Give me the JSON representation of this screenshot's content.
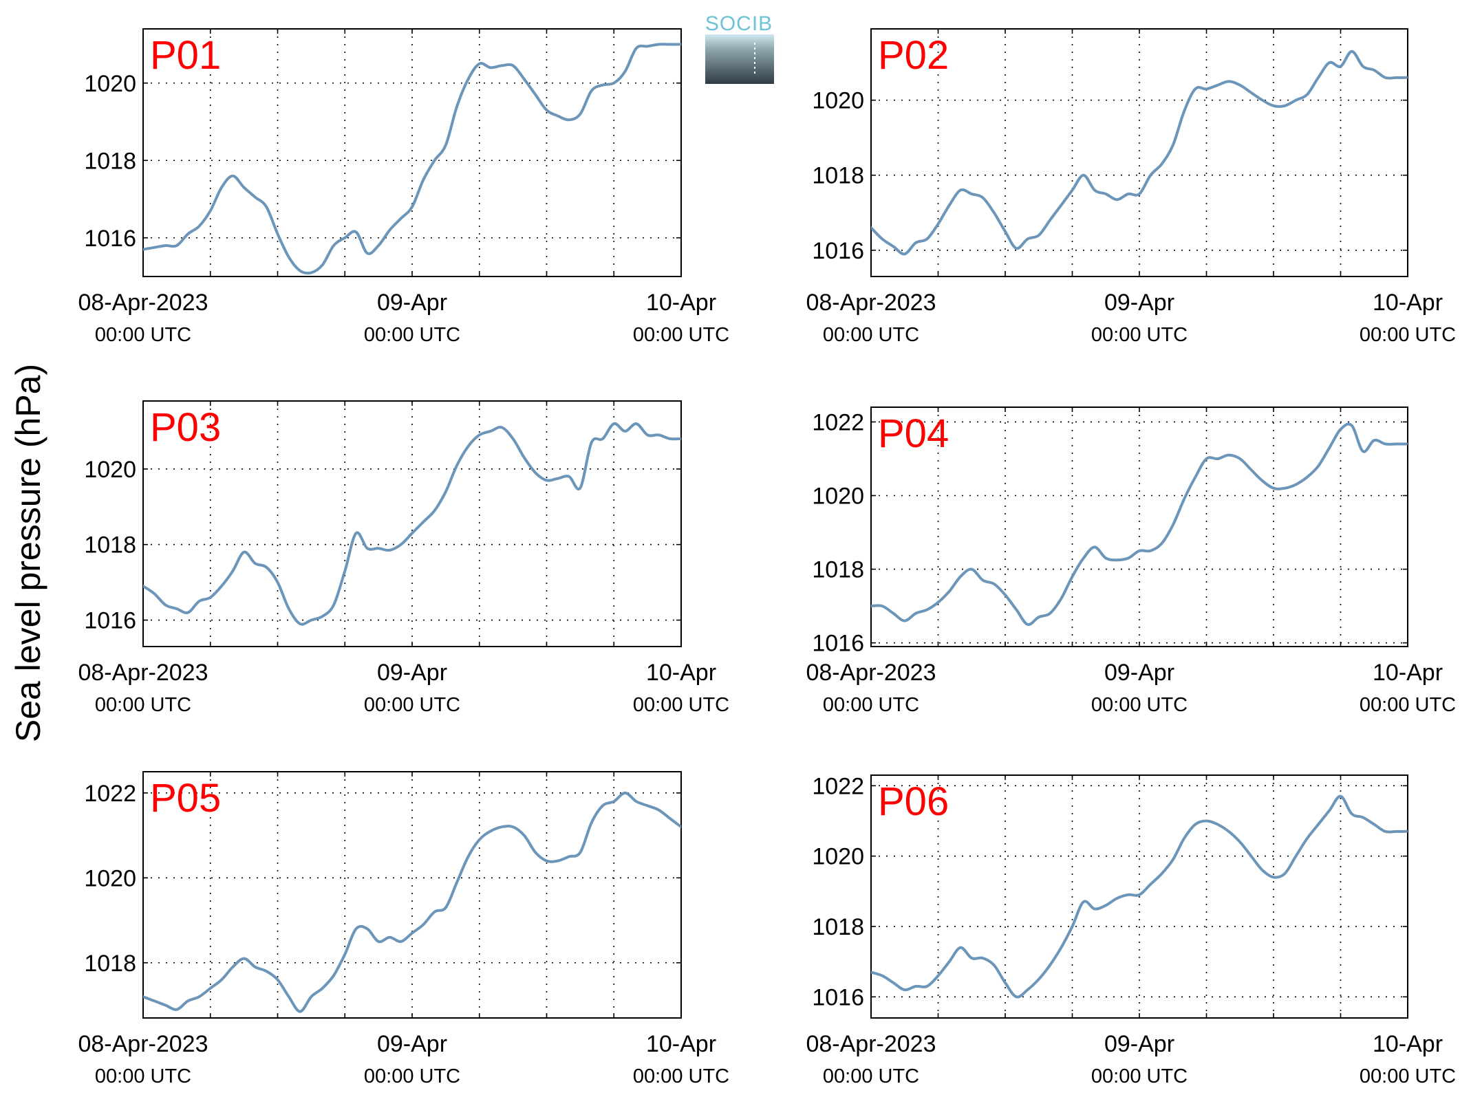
{
  "logo": {
    "text": "SOCIB"
  },
  "ylabel": "Sea level pressure (hPa)",
  "x_ticks": [
    {
      "date": "08-Apr-2023",
      "time": "00:00 UTC"
    },
    {
      "date": "09-Apr",
      "time": "00:00 UTC"
    },
    {
      "date": "10-Apr",
      "time": "00:00 UTC"
    }
  ],
  "colors": {
    "line": "#6b95b9",
    "label": "#ff0000"
  },
  "chart_data": [
    {
      "type": "line",
      "label": "P01",
      "xlim": [
        0,
        48
      ],
      "ylim": [
        1015,
        1021.4
      ],
      "yticks": [
        1016,
        1018,
        1020
      ],
      "x": [
        0,
        1,
        2,
        3,
        4,
        5,
        6,
        7,
        8,
        9,
        10,
        11,
        12,
        13,
        14,
        15,
        16,
        17,
        18,
        19,
        20,
        21,
        22,
        23,
        24,
        25,
        26,
        27,
        28,
        29,
        30,
        31,
        32,
        33,
        34,
        35,
        36,
        37,
        38,
        39,
        40,
        41,
        42,
        43,
        44,
        45,
        46,
        47,
        48
      ],
      "values": [
        1015.7,
        1015.75,
        1015.8,
        1015.8,
        1016.1,
        1016.3,
        1016.7,
        1017.3,
        1017.6,
        1017.3,
        1017.05,
        1016.8,
        1016.1,
        1015.5,
        1015.15,
        1015.1,
        1015.3,
        1015.8,
        1016.0,
        1016.15,
        1015.6,
        1015.8,
        1016.2,
        1016.5,
        1016.8,
        1017.5,
        1018.0,
        1018.4,
        1019.4,
        1020.1,
        1020.5,
        1020.4,
        1020.45,
        1020.45,
        1020.1,
        1019.7,
        1019.3,
        1019.15,
        1019.05,
        1019.2,
        1019.8,
        1019.95,
        1020.0,
        1020.3,
        1020.9,
        1020.95,
        1021.0,
        1021.0,
        1021.0
      ]
    },
    {
      "type": "line",
      "label": "P02",
      "xlim": [
        0,
        48
      ],
      "ylim": [
        1015.3,
        1021.9
      ],
      "yticks": [
        1016,
        1018,
        1020
      ],
      "x": [
        0,
        1,
        2,
        3,
        4,
        5,
        6,
        7,
        8,
        9,
        10,
        11,
        12,
        13,
        14,
        15,
        16,
        17,
        18,
        19,
        20,
        21,
        22,
        23,
        24,
        25,
        26,
        27,
        28,
        29,
        30,
        31,
        32,
        33,
        34,
        35,
        36,
        37,
        38,
        39,
        40,
        41,
        42,
        43,
        44,
        45,
        46,
        47,
        48
      ],
      "values": [
        1016.6,
        1016.3,
        1016.1,
        1015.9,
        1016.2,
        1016.3,
        1016.7,
        1017.2,
        1017.6,
        1017.5,
        1017.4,
        1017.0,
        1016.5,
        1016.05,
        1016.3,
        1016.4,
        1016.8,
        1017.2,
        1017.6,
        1018.0,
        1017.6,
        1017.5,
        1017.35,
        1017.5,
        1017.5,
        1018.0,
        1018.3,
        1018.8,
        1019.7,
        1020.3,
        1020.3,
        1020.4,
        1020.5,
        1020.4,
        1020.2,
        1020.0,
        1019.85,
        1019.85,
        1020.0,
        1020.15,
        1020.6,
        1021.0,
        1020.9,
        1021.3,
        1020.9,
        1020.8,
        1020.6,
        1020.6,
        1020.6
      ]
    },
    {
      "type": "line",
      "label": "P03",
      "xlim": [
        0,
        48
      ],
      "ylim": [
        1015.3,
        1021.8
      ],
      "yticks": [
        1016,
        1018,
        1020
      ],
      "x": [
        0,
        1,
        2,
        3,
        4,
        5,
        6,
        7,
        8,
        9,
        10,
        11,
        12,
        13,
        14,
        15,
        16,
        17,
        18,
        19,
        20,
        21,
        22,
        23,
        24,
        25,
        26,
        27,
        28,
        29,
        30,
        31,
        32,
        33,
        34,
        35,
        36,
        37,
        38,
        39,
        40,
        41,
        42,
        43,
        44,
        45,
        46,
        47,
        48
      ],
      "values": [
        1016.9,
        1016.7,
        1016.4,
        1016.3,
        1016.2,
        1016.5,
        1016.6,
        1016.9,
        1017.3,
        1017.8,
        1017.5,
        1017.4,
        1017.0,
        1016.3,
        1015.9,
        1016.0,
        1016.1,
        1016.4,
        1017.3,
        1018.3,
        1017.9,
        1017.9,
        1017.85,
        1018.0,
        1018.3,
        1018.6,
        1018.9,
        1019.4,
        1020.1,
        1020.6,
        1020.9,
        1021.0,
        1021.1,
        1020.8,
        1020.3,
        1019.9,
        1019.7,
        1019.75,
        1019.8,
        1019.5,
        1020.7,
        1020.8,
        1021.2,
        1021.0,
        1021.2,
        1020.9,
        1020.9,
        1020.8,
        1020.8
      ]
    },
    {
      "type": "line",
      "label": "P04",
      "xlim": [
        0,
        48
      ],
      "ylim": [
        1015.9,
        1022.4
      ],
      "yticks": [
        1016,
        1018,
        1020,
        1022
      ],
      "x": [
        0,
        1,
        2,
        3,
        4,
        5,
        6,
        7,
        8,
        9,
        10,
        11,
        12,
        13,
        14,
        15,
        16,
        17,
        18,
        19,
        20,
        21,
        22,
        23,
        24,
        25,
        26,
        27,
        28,
        29,
        30,
        31,
        32,
        33,
        34,
        35,
        36,
        37,
        38,
        39,
        40,
        41,
        42,
        43,
        44,
        45,
        46,
        47,
        48
      ],
      "values": [
        1017.0,
        1017.0,
        1016.8,
        1016.6,
        1016.8,
        1016.9,
        1017.1,
        1017.4,
        1017.8,
        1018.0,
        1017.7,
        1017.6,
        1017.3,
        1016.9,
        1016.5,
        1016.7,
        1016.8,
        1017.2,
        1017.8,
        1018.3,
        1018.6,
        1018.3,
        1018.25,
        1018.3,
        1018.5,
        1018.5,
        1018.7,
        1019.2,
        1019.9,
        1020.5,
        1021.0,
        1021.0,
        1021.1,
        1021.0,
        1020.7,
        1020.4,
        1020.2,
        1020.2,
        1020.3,
        1020.5,
        1020.8,
        1021.3,
        1021.8,
        1021.9,
        1021.2,
        1021.5,
        1021.4,
        1021.4,
        1021.4
      ]
    },
    {
      "type": "line",
      "label": "P05",
      "xlim": [
        0,
        48
      ],
      "ylim": [
        1016.7,
        1022.5
      ],
      "yticks": [
        1018,
        1020,
        1022
      ],
      "x": [
        0,
        1,
        2,
        3,
        4,
        5,
        6,
        7,
        8,
        9,
        10,
        11,
        12,
        13,
        14,
        15,
        16,
        17,
        18,
        19,
        20,
        21,
        22,
        23,
        24,
        25,
        26,
        27,
        28,
        29,
        30,
        31,
        32,
        33,
        34,
        35,
        36,
        37,
        38,
        39,
        40,
        41,
        42,
        43,
        44,
        45,
        46,
        47,
        48
      ],
      "values": [
        1017.2,
        1017.1,
        1017.0,
        1016.9,
        1017.1,
        1017.2,
        1017.4,
        1017.6,
        1017.9,
        1018.1,
        1017.9,
        1017.8,
        1017.6,
        1017.2,
        1016.85,
        1017.2,
        1017.4,
        1017.7,
        1018.2,
        1018.8,
        1018.8,
        1018.5,
        1018.6,
        1018.5,
        1018.7,
        1018.9,
        1019.2,
        1019.3,
        1019.9,
        1020.5,
        1020.9,
        1021.1,
        1021.2,
        1021.2,
        1021.0,
        1020.6,
        1020.4,
        1020.4,
        1020.5,
        1020.6,
        1021.3,
        1021.7,
        1021.8,
        1022.0,
        1021.8,
        1021.7,
        1021.6,
        1021.4,
        1021.2
      ]
    },
    {
      "type": "line",
      "label": "P06",
      "xlim": [
        0,
        48
      ],
      "ylim": [
        1015.4,
        1022.3
      ],
      "yticks": [
        1016,
        1018,
        1020,
        1022
      ],
      "x": [
        0,
        1,
        2,
        3,
        4,
        5,
        6,
        7,
        8,
        9,
        10,
        11,
        12,
        13,
        14,
        15,
        16,
        17,
        18,
        19,
        20,
        21,
        22,
        23,
        24,
        25,
        26,
        27,
        28,
        29,
        30,
        31,
        32,
        33,
        34,
        35,
        36,
        37,
        38,
        39,
        40,
        41,
        42,
        43,
        44,
        45,
        46,
        47,
        48
      ],
      "values": [
        1016.7,
        1016.6,
        1016.4,
        1016.2,
        1016.3,
        1016.3,
        1016.6,
        1017.0,
        1017.4,
        1017.1,
        1017.1,
        1016.9,
        1016.4,
        1016.0,
        1016.2,
        1016.5,
        1016.9,
        1017.4,
        1018.0,
        1018.7,
        1018.5,
        1018.6,
        1018.8,
        1018.9,
        1018.9,
        1019.2,
        1019.5,
        1019.9,
        1020.5,
        1020.9,
        1021.0,
        1020.9,
        1020.7,
        1020.4,
        1020.0,
        1019.6,
        1019.4,
        1019.5,
        1020.0,
        1020.5,
        1020.9,
        1021.3,
        1021.7,
        1021.2,
        1021.1,
        1020.9,
        1020.7,
        1020.7,
        1020.7
      ]
    }
  ]
}
